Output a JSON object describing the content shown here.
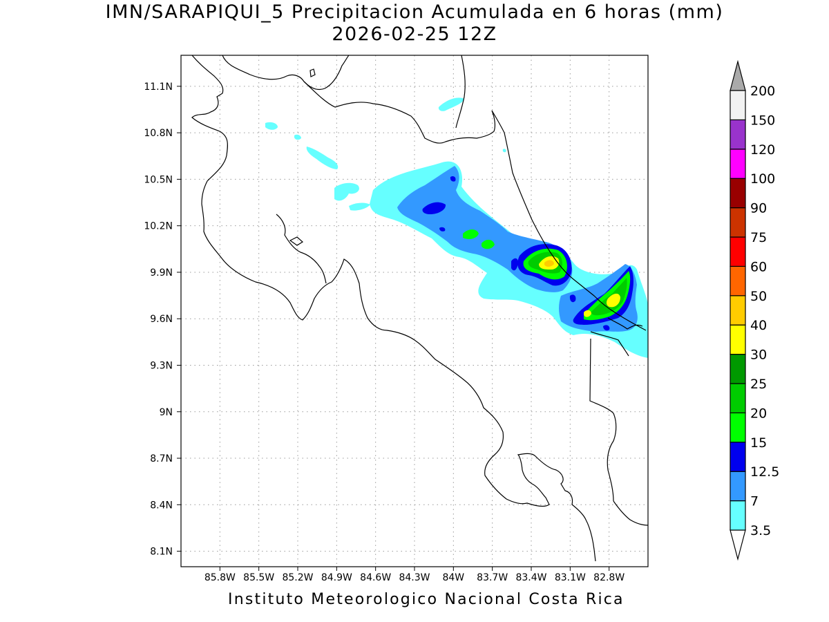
{
  "title": {
    "main": "IMN/SARAPIQUI_5 Precipitacion Acumulada en 6 horas (mm)",
    "sub": "2026-02-25 12Z"
  },
  "credit": "Instituto Meteorologico Nacional Costa Rica",
  "map": {
    "lon_range": [
      -86.1,
      -82.5
    ],
    "lat_range": [
      8.0,
      11.3
    ],
    "lon_ticks": [
      {
        "value": -85.8,
        "label": "85.8W"
      },
      {
        "value": -85.5,
        "label": "85.5W"
      },
      {
        "value": -85.2,
        "label": "85.2W"
      },
      {
        "value": -84.9,
        "label": "84.9W"
      },
      {
        "value": -84.6,
        "label": "84.6W"
      },
      {
        "value": -84.3,
        "label": "84.3W"
      },
      {
        "value": -84.0,
        "label": "84W"
      },
      {
        "value": -83.7,
        "label": "83.7W"
      },
      {
        "value": -83.4,
        "label": "83.4W"
      },
      {
        "value": -83.1,
        "label": "83.1W"
      },
      {
        "value": -82.8,
        "label": "82.8W"
      }
    ],
    "lat_ticks": [
      {
        "value": 11.1,
        "label": "11.1N"
      },
      {
        "value": 10.8,
        "label": "10.8N"
      },
      {
        "value": 10.5,
        "label": "10.5N"
      },
      {
        "value": 10.2,
        "label": "10.2N"
      },
      {
        "value": 9.9,
        "label": "9.9N"
      },
      {
        "value": 9.6,
        "label": "9.6N"
      },
      {
        "value": 9.3,
        "label": "9.3N"
      },
      {
        "value": 9.0,
        "label": "9N"
      },
      {
        "value": 8.7,
        "label": "8.7N"
      },
      {
        "value": 8.4,
        "label": "8.4N"
      },
      {
        "value": 8.1,
        "label": "8.1N"
      }
    ],
    "grid": "dotted"
  },
  "colorbar": {
    "levels": [
      "3.5",
      "7",
      "12.5",
      "15",
      "20",
      "25",
      "30",
      "40",
      "50",
      "60",
      "75",
      "90",
      "100",
      "120",
      "150",
      "200"
    ],
    "colors": [
      "#66ffff",
      "#3399ff",
      "#0000ee",
      "#00ff00",
      "#00cc00",
      "#009900",
      "#ffff00",
      "#ffcc00",
      "#ff6600",
      "#ff0000",
      "#cc3300",
      "#990000",
      "#ff00ff",
      "#9933cc",
      "#f2f2f2"
    ],
    "below_color": "#ffffff",
    "above_color": "#aaaaaa"
  }
}
